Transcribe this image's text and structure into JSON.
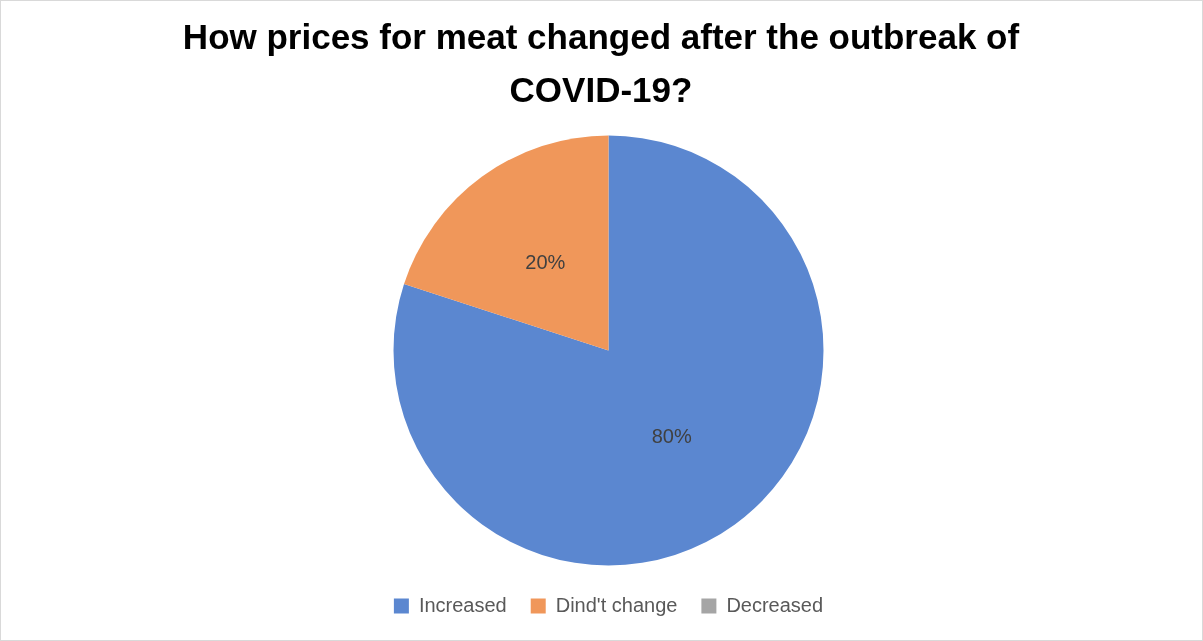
{
  "chart_data": {
    "type": "pie",
    "title": "How prices for meat changed after the outbreak of COVID-19?",
    "categories": [
      "Increased",
      "Dind't change",
      "Decreased"
    ],
    "values": [
      80,
      20,
      0
    ],
    "colors": [
      "#5b87d0",
      "#f0975a",
      "#a5a5a5"
    ],
    "value_labels": [
      "80%",
      "20%",
      null
    ],
    "legend": "bottom"
  }
}
